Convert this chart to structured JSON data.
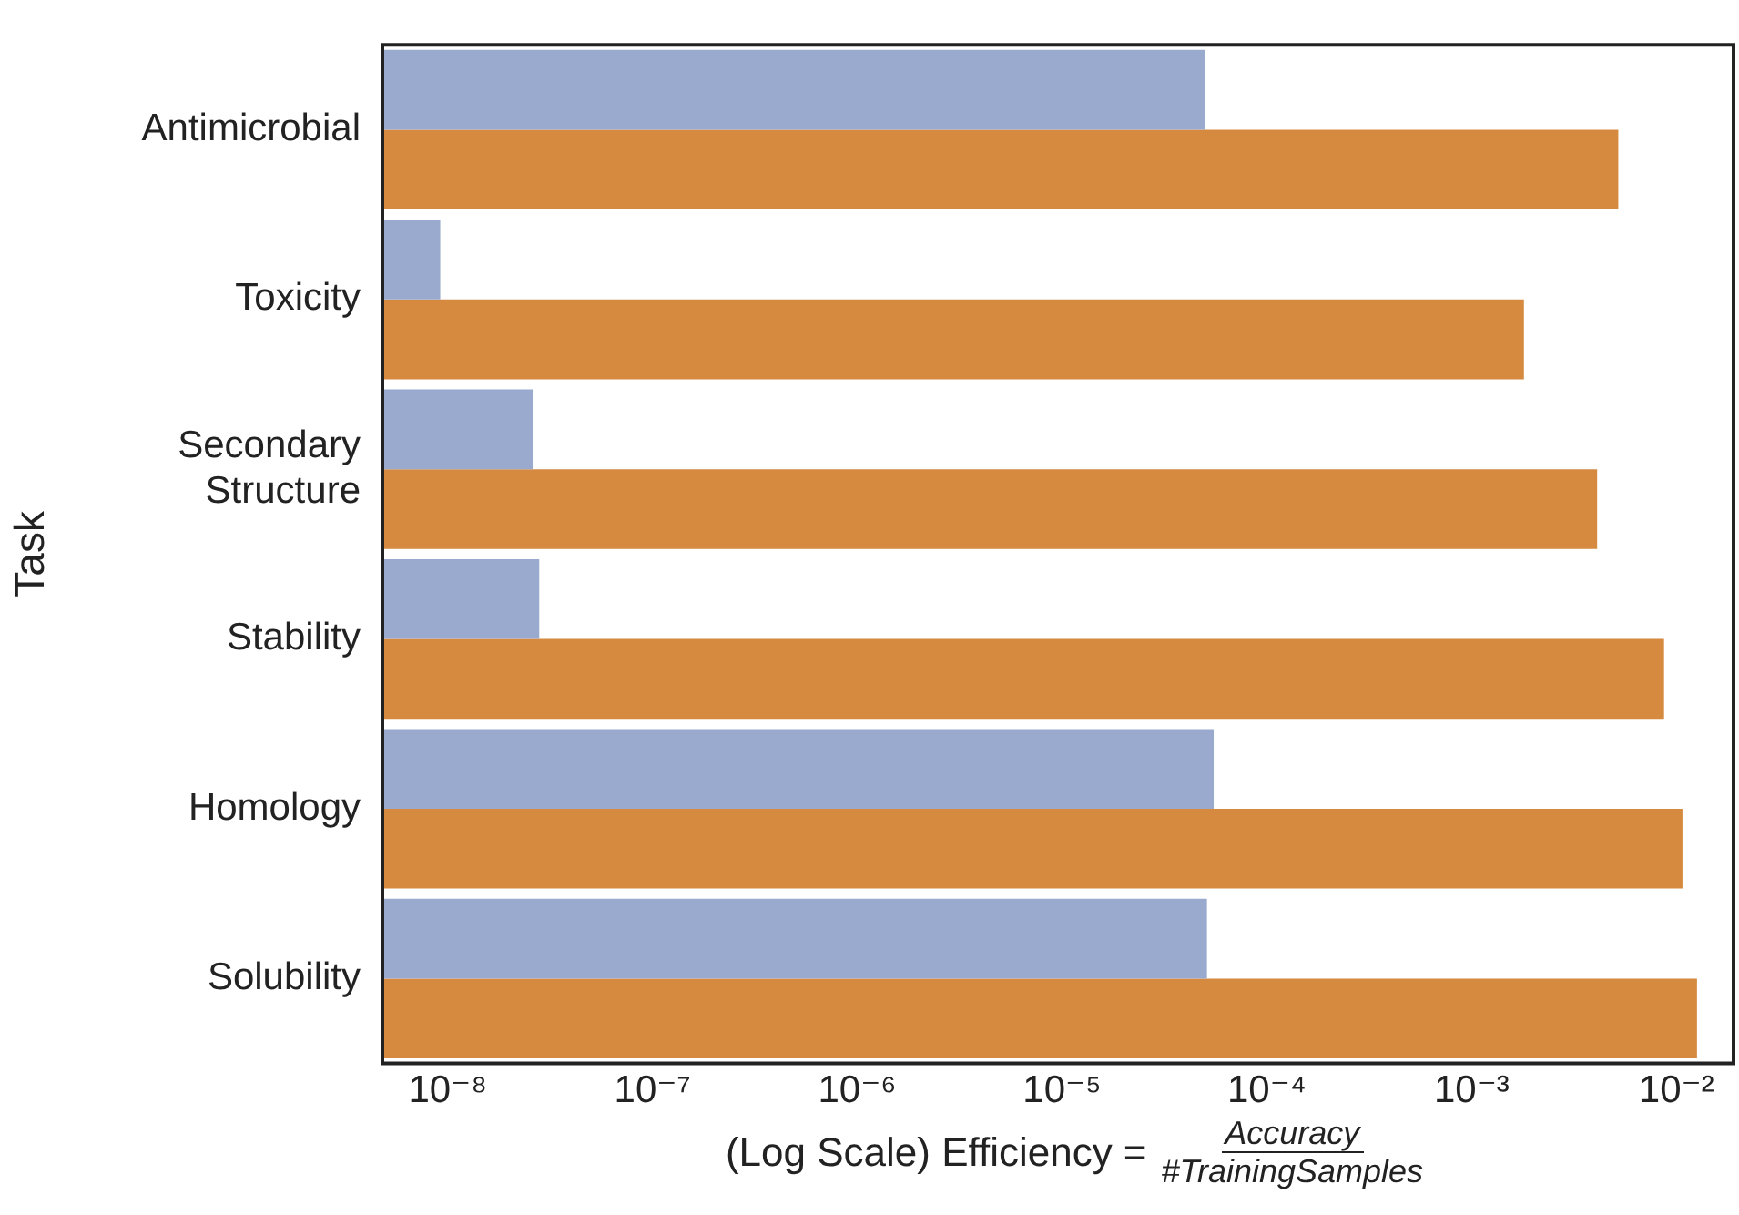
{
  "chart_data": {
    "type": "bar",
    "orientation": "horizontal",
    "log": "x",
    "grid": false,
    "legend": false,
    "ylabel": "Task",
    "xlabel": "(Log Scale) Efficiency = Accuracy #TrainingSamples",
    "categories": [
      "Antimicrobial",
      "Toxicity",
      "Secondary Structure",
      "Stability",
      "Homology",
      "Solubility"
    ],
    "series": [
      {
        "color": "#9aaacf",
        "values": [
          5e-05,
          9.2e-09,
          2.6e-08,
          2.8e-08,
          5.5e-05,
          5.1e-05
        ]
      },
      {
        "color": "#d58a3f",
        "values": [
          0.0052,
          0.0018,
          0.0041,
          0.0087,
          0.0107,
          0.0126
        ]
      }
    ],
    "xlim": [
      4.8e-09,
      0.019
    ],
    "xticks": [
      {
        "value": 1e-08,
        "label": "10⁻⁸"
      },
      {
        "value": 1e-07,
        "label": "10⁻⁷"
      },
      {
        "value": 1e-06,
        "label": "10⁻⁶"
      },
      {
        "value": 1e-05,
        "label": "10⁻⁵"
      },
      {
        "value": 0.0001,
        "label": "10⁻⁴"
      },
      {
        "value": 0.001,
        "label": "10⁻³"
      },
      {
        "value": 0.01,
        "label": "10⁻²"
      }
    ]
  }
}
